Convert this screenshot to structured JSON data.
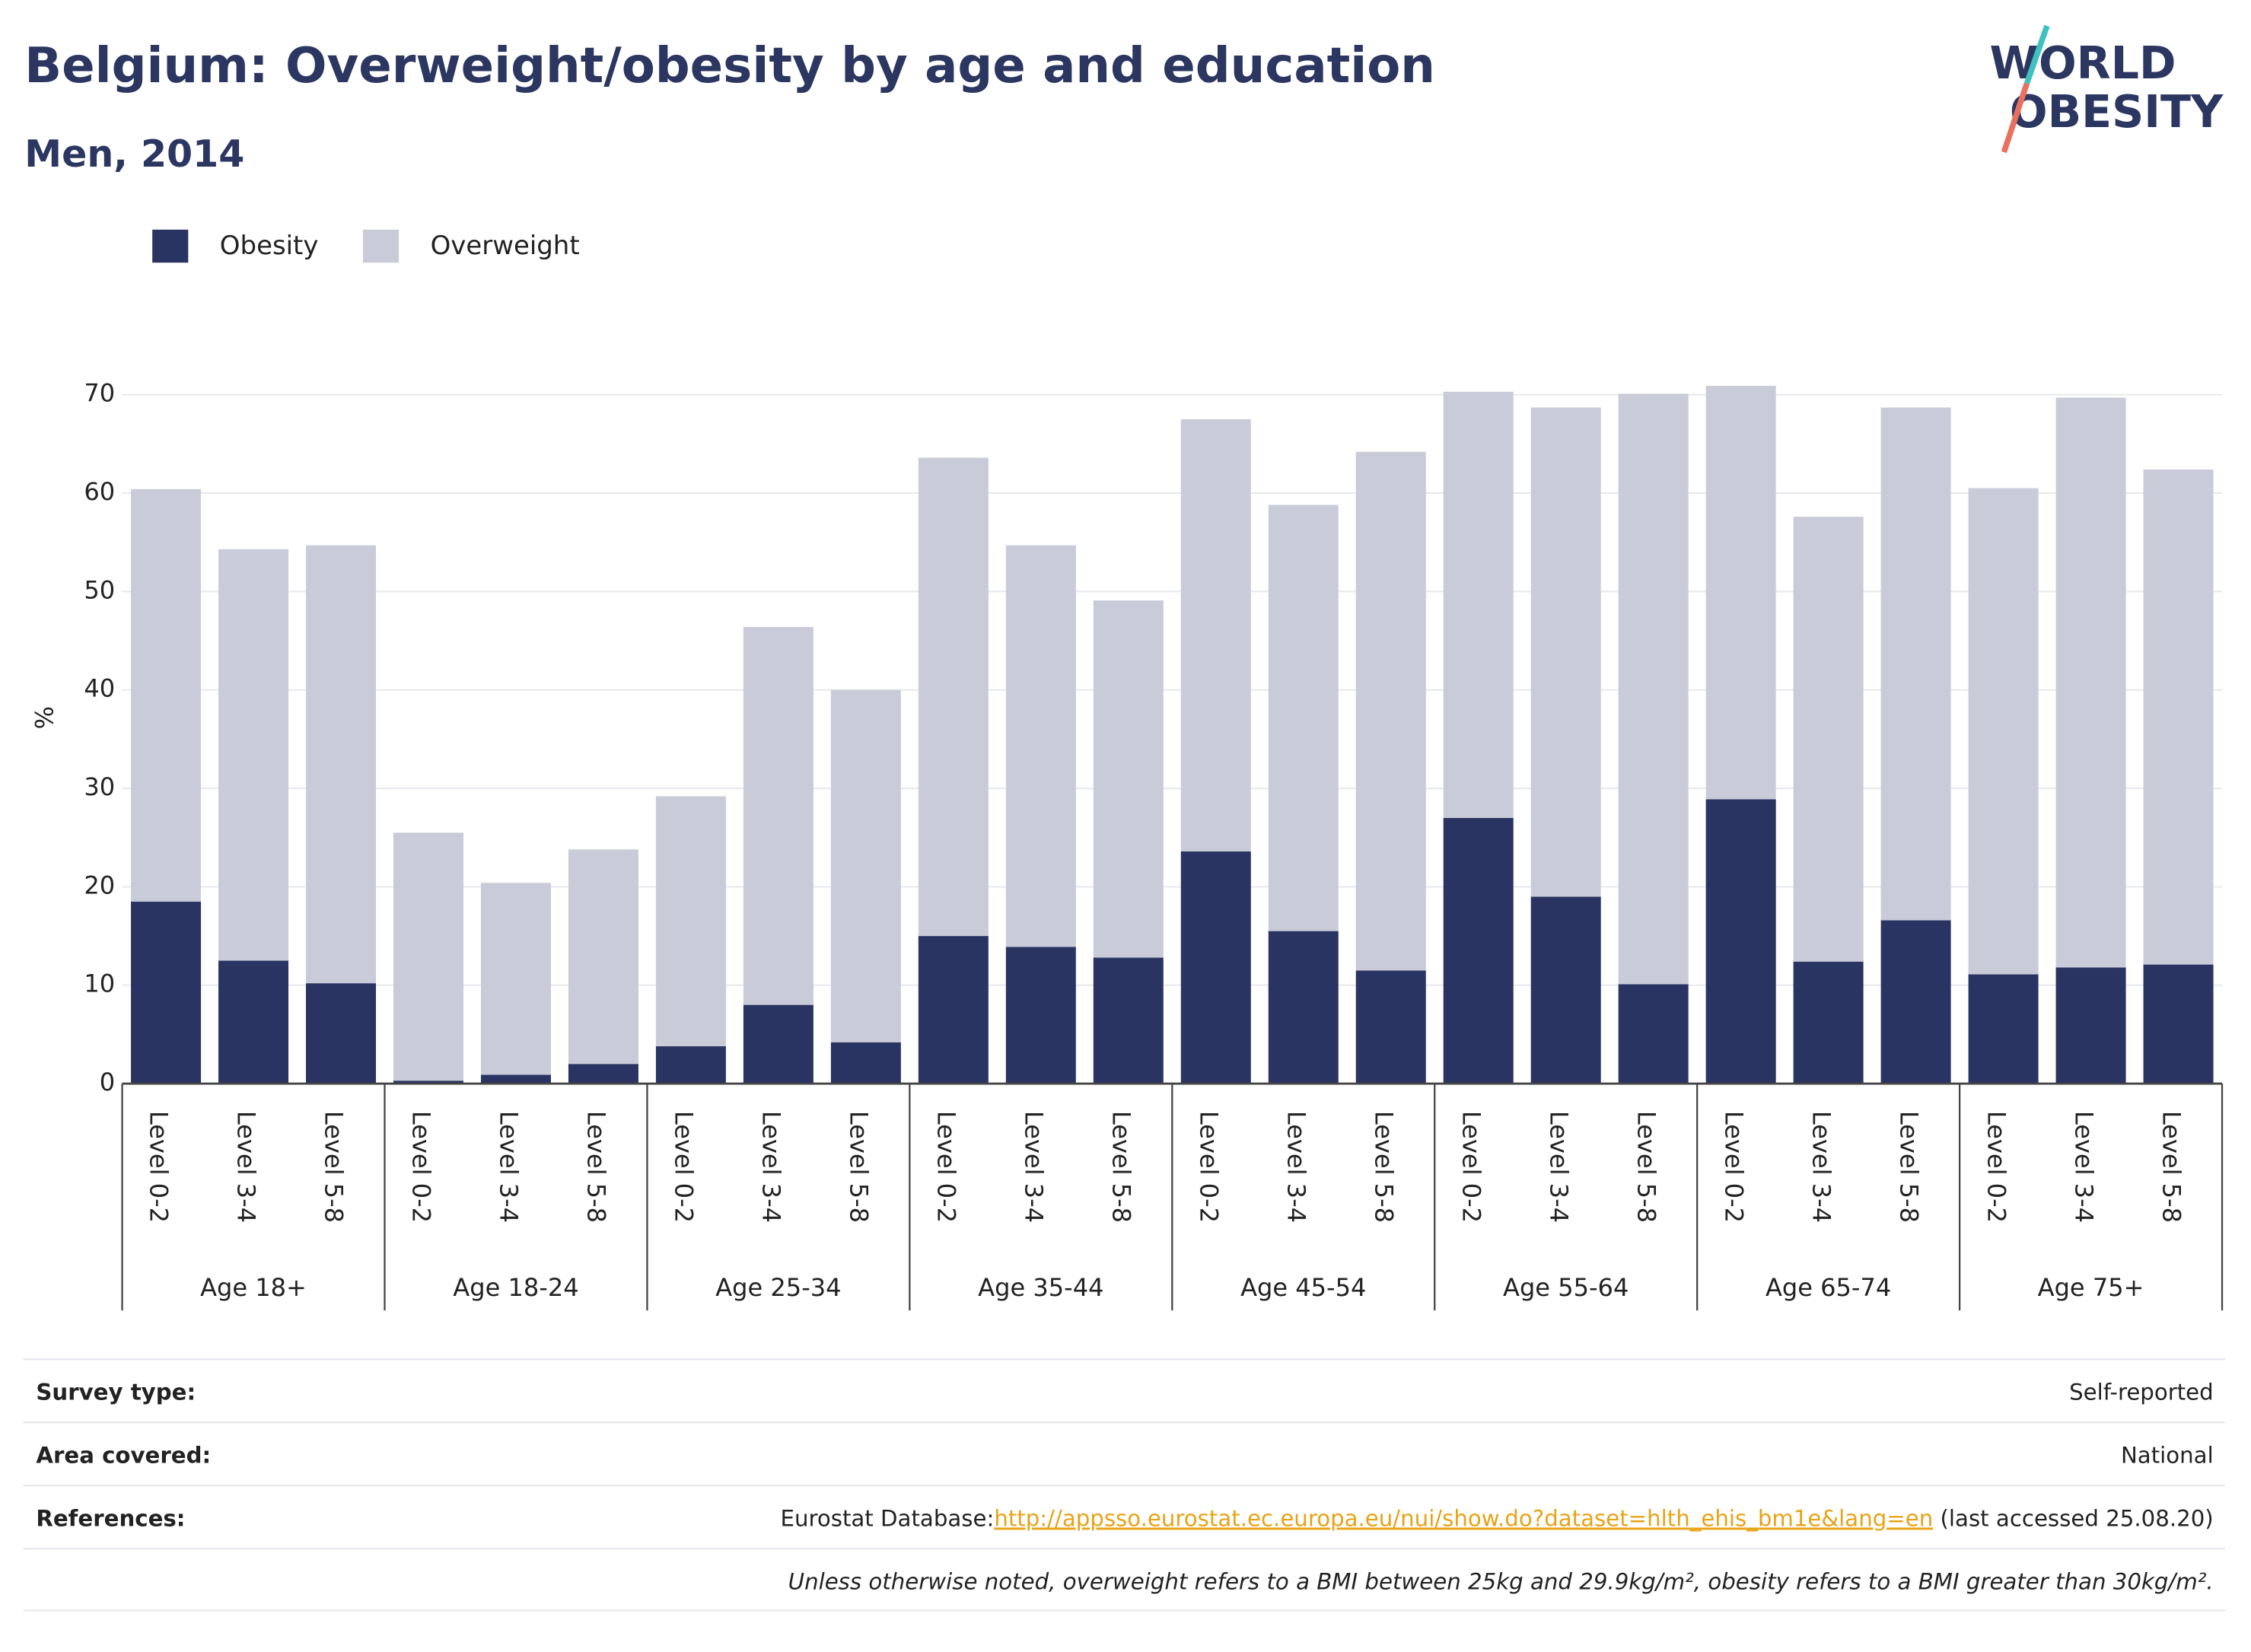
{
  "chart_data": {
    "type": "bar",
    "stacked": true,
    "title": "Belgium: Overweight/obesity by age and education",
    "subtitle": "Men, 2014",
    "y_label": "%",
    "categories": [
      "Level 0-2",
      "Level 3-4",
      "Level 5-8",
      "Level 0-2",
      "Level 3-4",
      "Level 5-8",
      "Level 0-2",
      "Level 3-4",
      "Level 5-8",
      "Level 0-2",
      "Level 3-4",
      "Level 5-8",
      "Level 0-2",
      "Level 3-4",
      "Level 5-8",
      "Level 0-2",
      "Level 3-4",
      "Level 5-8",
      "Level 0-2",
      "Level 3-4",
      "Level 5-8",
      "Level 0-2",
      "Level 3-4",
      "Level 5-8"
    ],
    "groups": [
      "Age 18+",
      "Age 18-24",
      "Age 25-34",
      "Age 35-44",
      "Age 45-54",
      "Age 55-64",
      "Age 65-74",
      "Age 75+"
    ],
    "series": [
      {
        "name": "Obesity",
        "color": "#293462",
        "values": [
          18.5,
          12.5,
          10.2,
          0.3,
          0.9,
          2.0,
          3.8,
          8.0,
          4.2,
          15.0,
          13.9,
          12.8,
          23.6,
          15.5,
          11.5,
          27.0,
          19.0,
          10.1,
          28.9,
          12.4,
          16.6,
          11.1,
          11.8,
          12.1
        ]
      },
      {
        "name": "Overweight",
        "color": "#c9cbd8",
        "values": [
          41.9,
          41.8,
          44.5,
          25.2,
          19.5,
          21.8,
          25.4,
          38.4,
          35.8,
          48.6,
          40.8,
          36.3,
          43.9,
          43.3,
          52.7,
          43.3,
          49.7,
          60.0,
          42.0,
          45.2,
          52.1,
          49.4,
          57.9,
          50.3
        ]
      }
    ],
    "ylim": [
      0,
      70
    ],
    "yticks": [
      0,
      10,
      20,
      30,
      40,
      50,
      60,
      70
    ],
    "grid": true,
    "legend": "top-left"
  },
  "logo": {
    "line1": "WORLD",
    "line2": "OBESITY"
  },
  "table": {
    "rows": [
      [
        "Survey type:",
        "Self-reported"
      ],
      [
        "Area covered:",
        "National"
      ]
    ],
    "references": {
      "label": "References:",
      "prefix": "Eurostat Database:",
      "url": "http://appsso.eurostat.ec.europa.eu/nui/show.do?dataset=hlth_ehis_bm1e&lang=en",
      "suffix": " (last accessed 25.08.20)"
    },
    "note": "Unless otherwise noted, overweight refers to a BMI between 25kg and 29.9kg/m², obesity refers to a BMI greater than 30kg/m²."
  }
}
